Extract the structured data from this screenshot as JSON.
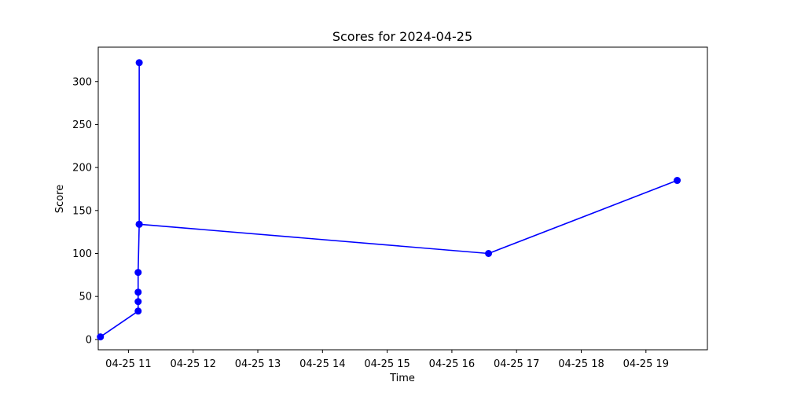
{
  "chart_data": {
    "type": "line",
    "title": "Scores for 2024-04-25",
    "xlabel": "Time",
    "ylabel": "Score",
    "xlim": [
      "2024-04-25 10:32",
      "2024-04-25 19:57"
    ],
    "ylim": [
      -12,
      340
    ],
    "x_ticks": [
      "2024-04-25 11:00",
      "2024-04-25 12:00",
      "2024-04-25 13:00",
      "2024-04-25 14:00",
      "2024-04-25 15:00",
      "2024-04-25 16:00",
      "2024-04-25 17:00",
      "2024-04-25 18:00",
      "2024-04-25 19:00"
    ],
    "x_tick_labels": [
      "04-25 11",
      "04-25 12",
      "04-25 13",
      "04-25 14",
      "04-25 15",
      "04-25 16",
      "04-25 17",
      "04-25 18",
      "04-25 19"
    ],
    "y_ticks": [
      0,
      50,
      100,
      150,
      200,
      250,
      300
    ],
    "y_tick_labels": [
      "0",
      "50",
      "100",
      "150",
      "200",
      "250",
      "300"
    ],
    "grid": false,
    "series": [
      {
        "color": "#0000ff",
        "marker": "circle",
        "points": [
          {
            "x": "2024-04-25 10:34",
            "y": 3
          },
          {
            "x": "2024-04-25 11:09",
            "y": 33
          },
          {
            "x": "2024-04-25 11:09",
            "y": 44
          },
          {
            "x": "2024-04-25 11:09",
            "y": 55
          },
          {
            "x": "2024-04-25 11:09",
            "y": 78
          },
          {
            "x": "2024-04-25 11:10",
            "y": 134
          },
          {
            "x": "2024-04-25 11:10",
            "y": 322
          },
          {
            "x": "2024-04-25 11:10",
            "y": 134
          },
          {
            "x": "2024-04-25 16:34",
            "y": 100
          },
          {
            "x": "2024-04-25 19:29",
            "y": 185
          }
        ]
      }
    ]
  }
}
